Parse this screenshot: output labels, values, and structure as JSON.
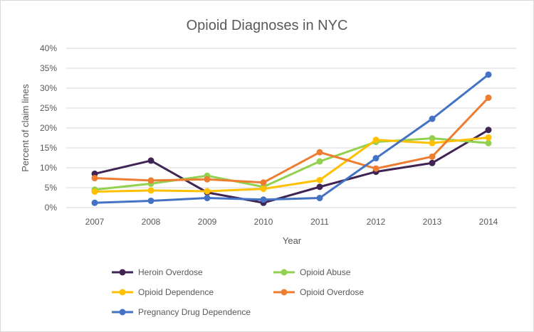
{
  "chart_data": {
    "type": "line",
    "title": "Opioid Diagnoses in NYC",
    "xlabel": "Year",
    "ylabel": "Percent of claim lines",
    "ylim": [
      0,
      40
    ],
    "y_tick_labels": [
      "0%",
      "5%",
      "10%",
      "15%",
      "20%",
      "25%",
      "30%",
      "35%",
      "40%"
    ],
    "categories": [
      "2007",
      "2008",
      "2009",
      "2010",
      "2011",
      "2012",
      "2013",
      "2014"
    ],
    "grid": true,
    "legend_position": "bottom",
    "series": [
      {
        "name": "Heroin Overdose",
        "color": "#3f2454",
        "values": [
          8.5,
          11.8,
          3.8,
          1.2,
          5.2,
          9.0,
          11.2,
          19.5
        ]
      },
      {
        "name": "Opioid Abuse",
        "color": "#92d050",
        "values": [
          4.5,
          6.0,
          8.0,
          5.2,
          11.6,
          16.5,
          17.4,
          16.2
        ]
      },
      {
        "name": "Opioid Dependence",
        "color": "#ffc000",
        "values": [
          4.0,
          4.3,
          4.1,
          4.7,
          6.9,
          17.0,
          16.2,
          17.6
        ]
      },
      {
        "name": "Opioid Overdose",
        "color": "#ed7d31",
        "values": [
          7.4,
          6.8,
          7.1,
          6.3,
          13.9,
          9.8,
          12.8,
          27.6
        ]
      },
      {
        "name": "Pregnancy Drug Dependence",
        "color": "#4472c4",
        "values": [
          1.2,
          1.7,
          2.4,
          2.0,
          2.4,
          12.4,
          22.3,
          33.4
        ]
      }
    ]
  }
}
